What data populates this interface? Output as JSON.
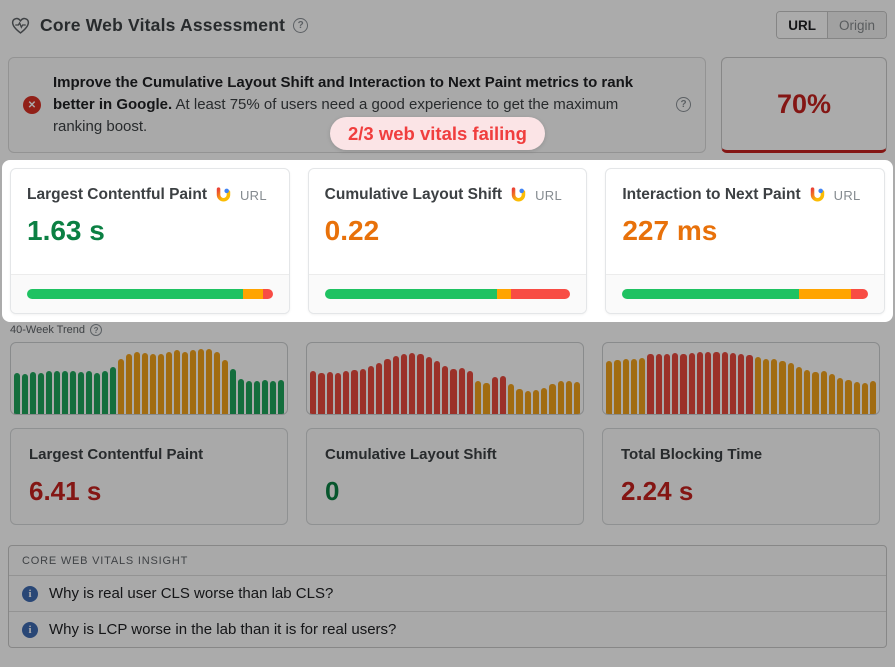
{
  "header": {
    "title": "Core Web Vitals Assessment",
    "toggle": {
      "url": "URL",
      "origin": "Origin"
    }
  },
  "alert": {
    "bold_text": "Improve the Cumulative Layout Shift and Interaction to Next Paint metrics to rank better in Google.",
    "body_text": " At least 75% of users need a good experience to get the maximum ranking boost.",
    "score": "70%",
    "badge": "2/3 web vitals failing"
  },
  "metric_cards": [
    {
      "title": "Largest Contentful Paint",
      "source": "URL",
      "value": "1.63 s",
      "value_color": "#0b8043",
      "distribution": {
        "good": 88,
        "needs_improvement": 8,
        "poor": 4
      }
    },
    {
      "title": "Cumulative Layout Shift",
      "source": "URL",
      "value": "0.22",
      "value_color": "#e8710a",
      "distribution": {
        "good": 70,
        "needs_improvement": 6,
        "poor": 24
      }
    },
    {
      "title": "Interaction to Next Paint",
      "source": "URL",
      "value": "227 ms",
      "value_color": "#e8710a",
      "distribution": {
        "good": 72,
        "needs_improvement": 21,
        "poor": 7
      }
    }
  ],
  "trend": {
    "label": "40-Week Trend",
    "charts": [
      {
        "metric": "Largest Contentful Paint",
        "type": "bar",
        "bars": [
          [
            58,
            "g"
          ],
          [
            57,
            "g"
          ],
          [
            59,
            "g"
          ],
          [
            58,
            "g"
          ],
          [
            60,
            "g"
          ],
          [
            61,
            "g"
          ],
          [
            60,
            "g"
          ],
          [
            61,
            "g"
          ],
          [
            59,
            "g"
          ],
          [
            60,
            "g"
          ],
          [
            58,
            "g"
          ],
          [
            60,
            "g"
          ],
          [
            66,
            "g"
          ],
          [
            78,
            "o"
          ],
          [
            84,
            "o"
          ],
          [
            88,
            "o"
          ],
          [
            86,
            "o"
          ],
          [
            84,
            "o"
          ],
          [
            85,
            "o"
          ],
          [
            88,
            "o"
          ],
          [
            90,
            "o"
          ],
          [
            88,
            "o"
          ],
          [
            90,
            "o"
          ],
          [
            92,
            "o"
          ],
          [
            91,
            "o"
          ],
          [
            88,
            "o"
          ],
          [
            76,
            "o"
          ],
          [
            64,
            "g"
          ],
          [
            50,
            "g"
          ],
          [
            47,
            "g"
          ],
          [
            46,
            "g"
          ],
          [
            48,
            "g"
          ],
          [
            47,
            "g"
          ],
          [
            48,
            "g"
          ]
        ]
      },
      {
        "metric": "Cumulative Layout Shift",
        "type": "bar",
        "bars": [
          [
            60,
            "r"
          ],
          [
            58,
            "r"
          ],
          [
            59,
            "r"
          ],
          [
            58,
            "r"
          ],
          [
            60,
            "r"
          ],
          [
            62,
            "r"
          ],
          [
            64,
            "r"
          ],
          [
            68,
            "r"
          ],
          [
            72,
            "r"
          ],
          [
            77,
            "r"
          ],
          [
            82,
            "r"
          ],
          [
            85,
            "r"
          ],
          [
            86,
            "r"
          ],
          [
            84,
            "r"
          ],
          [
            80,
            "r"
          ],
          [
            74,
            "r"
          ],
          [
            68,
            "r"
          ],
          [
            63,
            "r"
          ],
          [
            65,
            "r"
          ],
          [
            60,
            "r"
          ],
          [
            46,
            "o"
          ],
          [
            44,
            "o"
          ],
          [
            52,
            "r"
          ],
          [
            53,
            "r"
          ],
          [
            42,
            "o"
          ],
          [
            35,
            "o"
          ],
          [
            33,
            "o"
          ],
          [
            34,
            "o"
          ],
          [
            36,
            "o"
          ],
          [
            42,
            "o"
          ],
          [
            46,
            "o"
          ],
          [
            47,
            "o"
          ],
          [
            45,
            "o"
          ]
        ]
      },
      {
        "metric": "Total Blocking Time",
        "type": "bar",
        "bars": [
          [
            74,
            "o"
          ],
          [
            76,
            "o"
          ],
          [
            77,
            "o"
          ],
          [
            78,
            "o"
          ],
          [
            79,
            "o"
          ],
          [
            84,
            "r"
          ],
          [
            85,
            "r"
          ],
          [
            84,
            "r"
          ],
          [
            86,
            "r"
          ],
          [
            85,
            "r"
          ],
          [
            86,
            "r"
          ],
          [
            87,
            "r"
          ],
          [
            88,
            "r"
          ],
          [
            87,
            "r"
          ],
          [
            87,
            "r"
          ],
          [
            86,
            "r"
          ],
          [
            85,
            "r"
          ],
          [
            83,
            "r"
          ],
          [
            80,
            "o"
          ],
          [
            78,
            "o"
          ],
          [
            77,
            "o"
          ],
          [
            75,
            "o"
          ],
          [
            72,
            "o"
          ],
          [
            66,
            "o"
          ],
          [
            62,
            "o"
          ],
          [
            59,
            "o"
          ],
          [
            61,
            "o"
          ],
          [
            56,
            "o"
          ],
          [
            51,
            "o"
          ],
          [
            48,
            "o"
          ],
          [
            45,
            "o"
          ],
          [
            44,
            "o"
          ],
          [
            46,
            "o"
          ]
        ]
      }
    ]
  },
  "summary_cards": [
    {
      "title": "Largest Contentful Paint",
      "value": "6.41 s",
      "value_color": "#c5221f"
    },
    {
      "title": "Cumulative Layout Shift",
      "value": "0",
      "value_color": "#0b8043"
    },
    {
      "title": "Total Blocking Time",
      "value": "2.24 s",
      "value_color": "#c5221f"
    }
  ],
  "insights": {
    "header": "CORE WEB VITALS INSIGHT",
    "items": [
      "Why is real user CLS worse than lab CLS?",
      "Why is LCP worse in the lab than it is for real users?"
    ]
  },
  "colors": {
    "good": "#1fc262",
    "ni": "#ffa400",
    "poor": "#f84c44",
    "g": "#1ea55b",
    "o": "#f0a11c",
    "r": "#e8493e",
    "score_red": "#c5221f",
    "badge_bg": "#fbe4e6",
    "badge_text": "#f03e3e"
  }
}
